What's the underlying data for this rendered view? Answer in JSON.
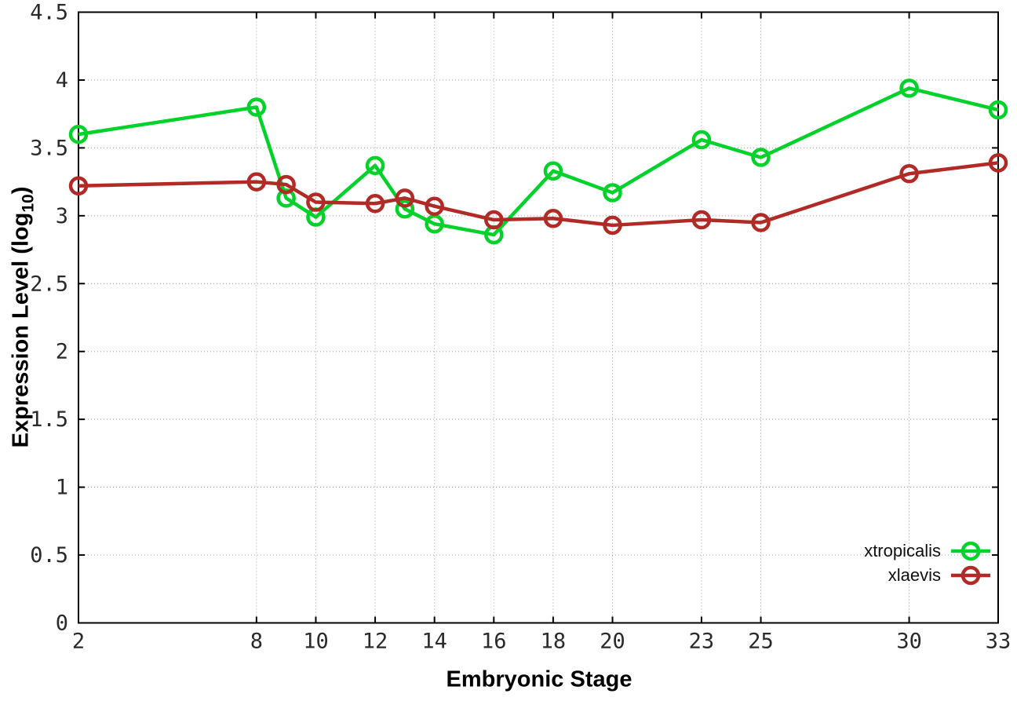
{
  "chart_data": {
    "type": "line",
    "title": "",
    "xlabel": "Embryonic Stage",
    "ylabel": "Expression Level (log10)",
    "ylabel_prefix": "Expression Level (log",
    "ylabel_subscript": "10",
    "ylabel_suffix": ")",
    "xlim": [
      2,
      33
    ],
    "ylim": [
      0,
      4.5
    ],
    "grid": true,
    "legend_position": "inside bottom-right",
    "marker": "open-circle",
    "x": [
      2,
      8,
      9,
      10,
      12,
      13,
      14,
      16,
      18,
      20,
      23,
      25,
      30,
      33
    ],
    "xtick_labels": [
      "2",
      "8",
      "10",
      "12",
      "14",
      "16",
      "18",
      "20",
      "23",
      "25",
      "30",
      "33"
    ],
    "xtick_values": [
      2,
      8,
      10,
      12,
      14,
      16,
      18,
      20,
      23,
      25,
      30,
      33
    ],
    "ytick_labels": [
      "0",
      "0.5",
      "1",
      "1.5",
      "2",
      "2.5",
      "3",
      "3.5",
      "4",
      "4.5"
    ],
    "ytick_values": [
      0,
      0.5,
      1,
      1.5,
      2,
      2.5,
      3,
      3.5,
      4,
      4.5
    ],
    "series": [
      {
        "name": "xtropicalis",
        "color": "#00d22a",
        "values": [
          3.6,
          3.8,
          3.13,
          2.99,
          3.37,
          3.05,
          2.94,
          2.86,
          3.33,
          3.17,
          3.56,
          3.43,
          3.94,
          3.78
        ]
      },
      {
        "name": "xlaevis",
        "color": "#b22a26",
        "values": [
          3.22,
          3.25,
          3.23,
          3.1,
          3.09,
          3.13,
          3.07,
          2.97,
          2.98,
          2.93,
          2.97,
          2.95,
          3.31,
          3.39
        ]
      }
    ],
    "colors": {
      "axis": "#000000",
      "grid": "#9c9c9c",
      "tick_text": "#2a2a2a",
      "background": "#ffffff"
    }
  }
}
